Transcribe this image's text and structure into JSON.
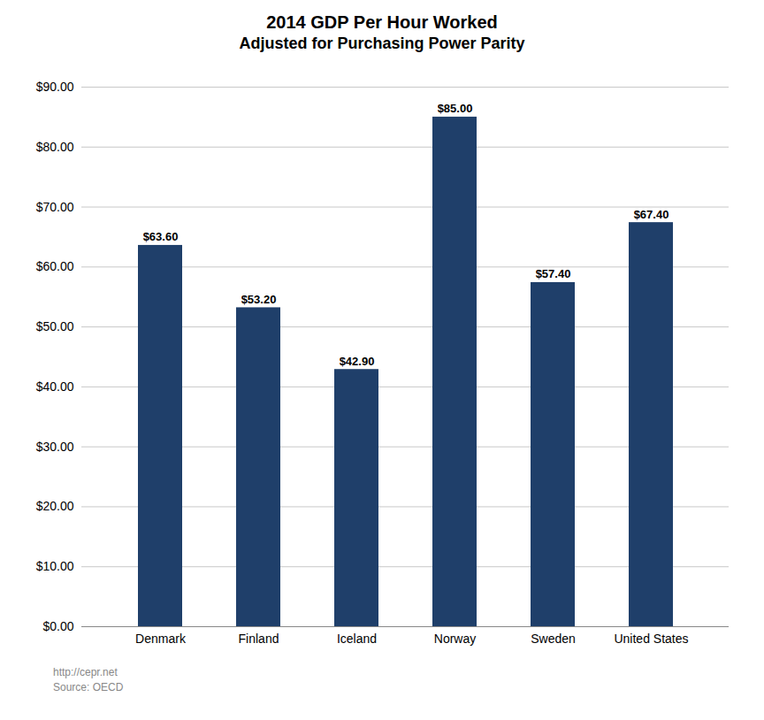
{
  "chart_data": {
    "type": "bar",
    "title": "2014 GDP Per Hour Worked",
    "subtitle": "Adjusted for Purchasing Power Parity",
    "annotations": [
      "http://cepr.net",
      "Source: OECD"
    ],
    "categories": [
      "Denmark",
      "Finland",
      "Iceland",
      "Norway",
      "Sweden",
      "United States"
    ],
    "values": [
      63.6,
      53.2,
      42.9,
      85.0,
      57.4,
      67.4
    ],
    "value_labels": [
      "$63.60",
      "$53.20",
      "$42.90",
      "$85.00",
      "$57.40",
      "$67.40"
    ],
    "data_labels": true,
    "color": "#1F3F6A",
    "ylim": [
      0,
      90
    ],
    "yticks": [
      {
        "value": 0,
        "label": "$0.00"
      },
      {
        "value": 10,
        "label": "$10.00"
      },
      {
        "value": 20,
        "label": "$20.00"
      },
      {
        "value": 30,
        "label": "$30.00"
      },
      {
        "value": 40,
        "label": "$40.00"
      },
      {
        "value": 50,
        "label": "$50.00"
      },
      {
        "value": 60,
        "label": "$60.00"
      },
      {
        "value": 70,
        "label": "$70.00"
      },
      {
        "value": 80,
        "label": "$80.00"
      },
      {
        "value": 90,
        "label": "$90.00"
      }
    ],
    "grid": true
  }
}
